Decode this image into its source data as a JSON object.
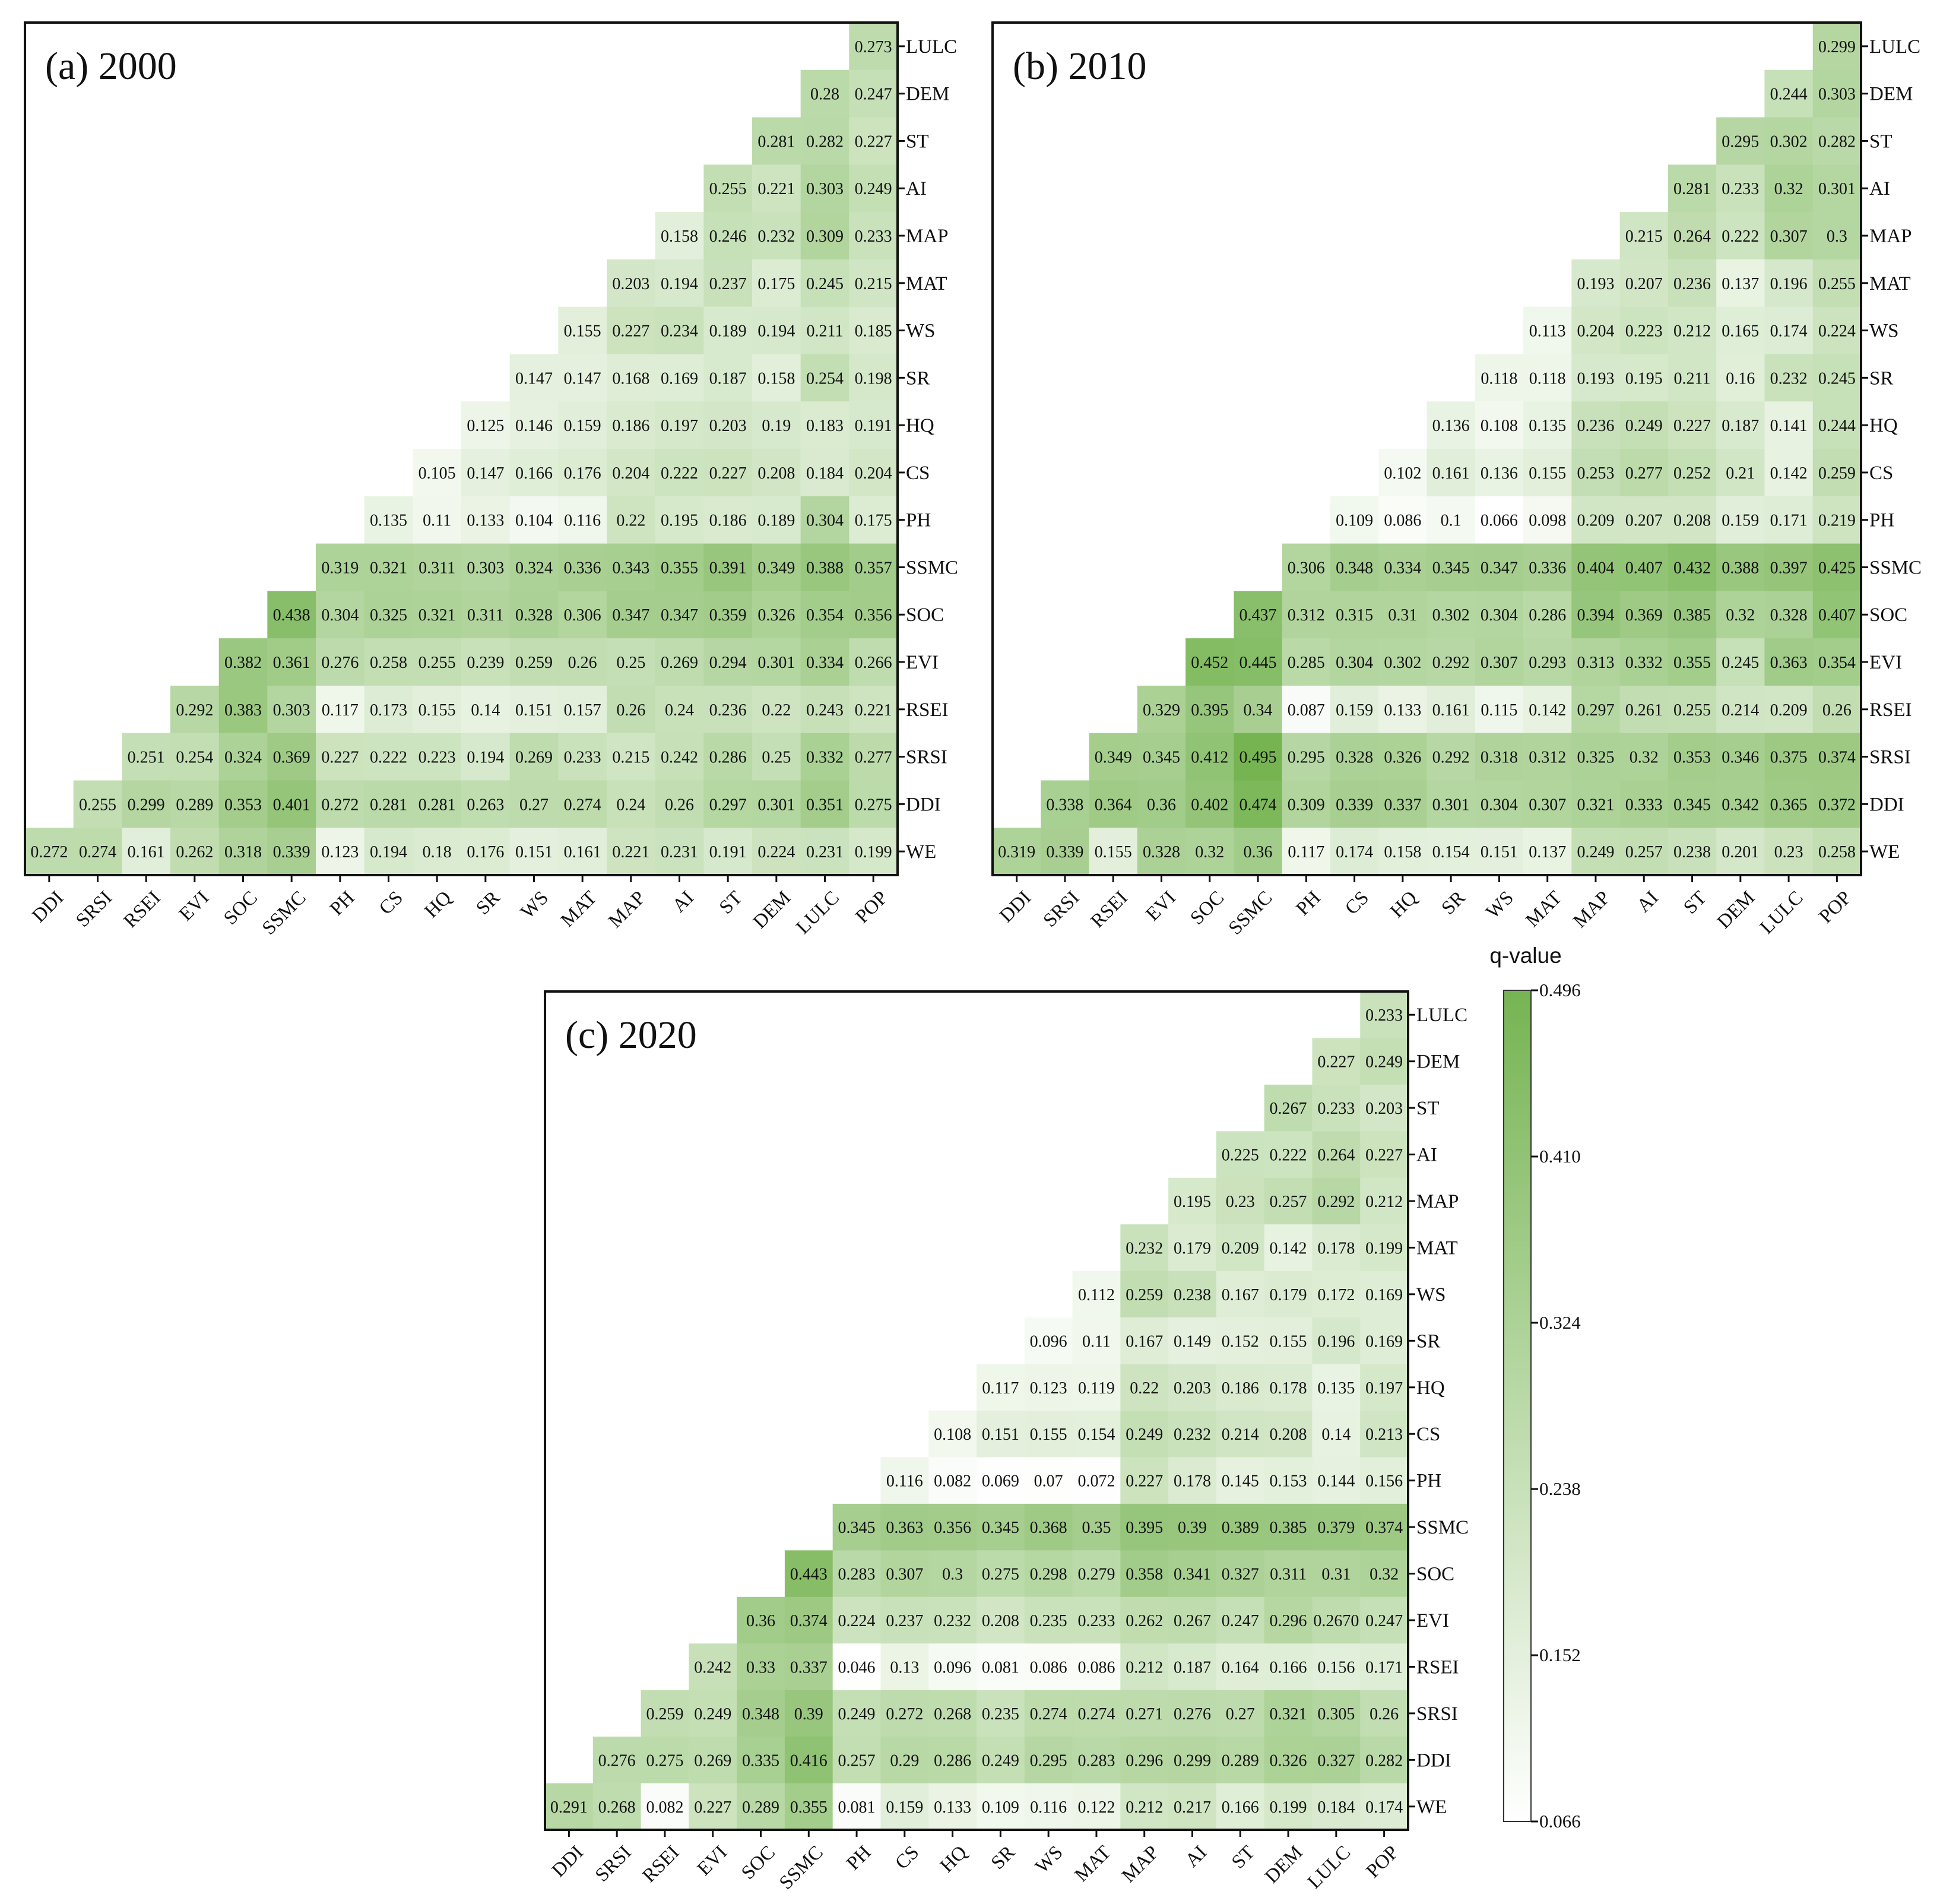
{
  "chart_data": {
    "type": "heatmap",
    "variables": [
      "DDI",
      "SRSI",
      "RSEI",
      "EVI",
      "SOC",
      "SSMC",
      "PH",
      "CS",
      "HQ",
      "SR",
      "WS",
      "MAT",
      "MAP",
      "AI",
      "ST",
      "DEM",
      "LULC",
      "POP"
    ],
    "row_order_top_to_bottom": [
      "LULC",
      "DEM",
      "ST",
      "AI",
      "MAP",
      "MAT",
      "WS",
      "SR",
      "HQ",
      "CS",
      "PH",
      "SSMC",
      "SOC",
      "EVI",
      "RSEI",
      "SRSI",
      "DDI",
      "WE"
    ],
    "color_scale": {
      "title": "q-value",
      "min": 0.066,
      "max": 0.496,
      "ticks": [
        "0.496",
        "0.410",
        "0.324",
        "0.238",
        "0.152",
        "0.066"
      ],
      "color_low": "#ffffff",
      "color_high": "#76b452"
    },
    "panels": [
      {
        "title": "(a) 2000",
        "rows": [
          {
            "label": "LULC",
            "values": [
              "0.273"
            ]
          },
          {
            "label": "DEM",
            "values": [
              "0.28",
              "0.247"
            ]
          },
          {
            "label": "ST",
            "values": [
              "0.281",
              "0.282",
              "0.227"
            ]
          },
          {
            "label": "AI",
            "values": [
              "0.255",
              "0.221",
              "0.303",
              "0.249"
            ]
          },
          {
            "label": "MAP",
            "values": [
              "0.158",
              "0.246",
              "0.232",
              "0.309",
              "0.233"
            ]
          },
          {
            "label": "MAT",
            "values": [
              "0.203",
              "0.194",
              "0.237",
              "0.175",
              "0.245",
              "0.215"
            ]
          },
          {
            "label": "WS",
            "values": [
              "0.155",
              "0.227",
              "0.234",
              "0.189",
              "0.194",
              "0.211",
              "0.185"
            ]
          },
          {
            "label": "SR",
            "values": [
              "0.147",
              "0.147",
              "0.168",
              "0.169",
              "0.187",
              "0.158",
              "0.254",
              "0.198"
            ]
          },
          {
            "label": "HQ",
            "values": [
              "0.125",
              "0.146",
              "0.159",
              "0.186",
              "0.197",
              "0.203",
              "0.19",
              "0.183",
              "0.191"
            ]
          },
          {
            "label": "CS",
            "values": [
              "0.105",
              "0.147",
              "0.166",
              "0.176",
              "0.204",
              "0.222",
              "0.227",
              "0.208",
              "0.184",
              "0.204"
            ]
          },
          {
            "label": "PH",
            "values": [
              "0.135",
              "0.11",
              "0.133",
              "0.104",
              "0.116",
              "0.22",
              "0.195",
              "0.186",
              "0.189",
              "0.304",
              "0.175"
            ]
          },
          {
            "label": "SSMC",
            "values": [
              "0.319",
              "0.321",
              "0.311",
              "0.303",
              "0.324",
              "0.336",
              "0.343",
              "0.355",
              "0.391",
              "0.349",
              "0.388",
              "0.357"
            ]
          },
          {
            "label": "SOC",
            "values": [
              "0.438",
              "0.304",
              "0.325",
              "0.321",
              "0.311",
              "0.328",
              "0.306",
              "0.347",
              "0.347",
              "0.359",
              "0.326",
              "0.354",
              "0.356"
            ]
          },
          {
            "label": "EVI",
            "values": [
              "0.382",
              "0.361",
              "0.276",
              "0.258",
              "0.255",
              "0.239",
              "0.259",
              "0.26",
              "0.25",
              "0.269",
              "0.294",
              "0.301",
              "0.334",
              "0.266"
            ]
          },
          {
            "label": "RSEI",
            "values": [
              "0.292",
              "0.383",
              "0.303",
              "0.117",
              "0.173",
              "0.155",
              "0.14",
              "0.151",
              "0.157",
              "0.26",
              "0.24",
              "0.236",
              "0.22",
              "0.243",
              "0.221"
            ]
          },
          {
            "label": "SRSI",
            "values": [
              "0.251",
              "0.254",
              "0.324",
              "0.369",
              "0.227",
              "0.222",
              "0.223",
              "0.194",
              "0.269",
              "0.233",
              "0.215",
              "0.242",
              "0.286",
              "0.25",
              "0.332",
              "0.277"
            ]
          },
          {
            "label": "DDI",
            "values": [
              "0.255",
              "0.299",
              "0.289",
              "0.353",
              "0.401",
              "0.272",
              "0.281",
              "0.281",
              "0.263",
              "0.27",
              "0.274",
              "0.24",
              "0.26",
              "0.297",
              "0.301",
              "0.351",
              "0.275"
            ]
          },
          {
            "label": "WE",
            "values": [
              "0.272",
              "0.274",
              "0.161",
              "0.262",
              "0.318",
              "0.339",
              "0.123",
              "0.194",
              "0.18",
              "0.176",
              "0.151",
              "0.161",
              "0.221",
              "0.231",
              "0.191",
              "0.224",
              "0.231",
              "0.199"
            ]
          }
        ]
      },
      {
        "title": "(b) 2010",
        "rows": [
          {
            "label": "LULC",
            "values": [
              "0.299"
            ]
          },
          {
            "label": "DEM",
            "values": [
              "0.244",
              "0.303"
            ]
          },
          {
            "label": "ST",
            "values": [
              "0.295",
              "0.302",
              "0.282"
            ]
          },
          {
            "label": "AI",
            "values": [
              "0.281",
              "0.233",
              "0.32",
              "0.301"
            ]
          },
          {
            "label": "MAP",
            "values": [
              "0.215",
              "0.264",
              "0.222",
              "0.307",
              "0.3"
            ]
          },
          {
            "label": "MAT",
            "values": [
              "0.193",
              "0.207",
              "0.236",
              "0.137",
              "0.196",
              "0.255"
            ]
          },
          {
            "label": "WS",
            "values": [
              "0.113",
              "0.204",
              "0.223",
              "0.212",
              "0.165",
              "0.174",
              "0.224"
            ]
          },
          {
            "label": "SR",
            "values": [
              "0.118",
              "0.118",
              "0.193",
              "0.195",
              "0.211",
              "0.16",
              "0.232",
              "0.245"
            ]
          },
          {
            "label": "HQ",
            "values": [
              "0.136",
              "0.108",
              "0.135",
              "0.236",
              "0.249",
              "0.227",
              "0.187",
              "0.141",
              "0.244"
            ]
          },
          {
            "label": "CS",
            "values": [
              "0.102",
              "0.161",
              "0.136",
              "0.155",
              "0.253",
              "0.277",
              "0.252",
              "0.21",
              "0.142",
              "0.259"
            ]
          },
          {
            "label": "PH",
            "values": [
              "0.109",
              "0.086",
              "0.1",
              "0.066",
              "0.098",
              "0.209",
              "0.207",
              "0.208",
              "0.159",
              "0.171",
              "0.219"
            ]
          },
          {
            "label": "SSMC",
            "values": [
              "0.306",
              "0.348",
              "0.334",
              "0.345",
              "0.347",
              "0.336",
              "0.404",
              "0.407",
              "0.432",
              "0.388",
              "0.397",
              "0.425"
            ]
          },
          {
            "label": "SOC",
            "values": [
              "0.437",
              "0.312",
              "0.315",
              "0.31",
              "0.302",
              "0.304",
              "0.286",
              "0.394",
              "0.369",
              "0.385",
              "0.32",
              "0.328",
              "0.407"
            ]
          },
          {
            "label": "EVI",
            "values": [
              "0.452",
              "0.445",
              "0.285",
              "0.304",
              "0.302",
              "0.292",
              "0.307",
              "0.293",
              "0.313",
              "0.332",
              "0.355",
              "0.245",
              "0.363",
              "0.354"
            ]
          },
          {
            "label": "RSEI",
            "values": [
              "0.329",
              "0.395",
              "0.34",
              "0.087",
              "0.159",
              "0.133",
              "0.161",
              "0.115",
              "0.142",
              "0.297",
              "0.261",
              "0.255",
              "0.214",
              "0.209",
              "0.26"
            ]
          },
          {
            "label": "SRSI",
            "values": [
              "0.349",
              "0.345",
              "0.412",
              "0.495",
              "0.295",
              "0.328",
              "0.326",
              "0.292",
              "0.318",
              "0.312",
              "0.325",
              "0.32",
              "0.353",
              "0.346",
              "0.375",
              "0.374"
            ]
          },
          {
            "label": "DDI",
            "values": [
              "0.338",
              "0.364",
              "0.36",
              "0.402",
              "0.474",
              "0.309",
              "0.339",
              "0.337",
              "0.301",
              "0.304",
              "0.307",
              "0.321",
              "0.333",
              "0.345",
              "0.342",
              "0.365",
              "0.372"
            ]
          },
          {
            "label": "WE",
            "values": [
              "0.319",
              "0.339",
              "0.155",
              "0.328",
              "0.32",
              "0.36",
              "0.117",
              "0.174",
              "0.158",
              "0.154",
              "0.151",
              "0.137",
              "0.249",
              "0.257",
              "0.238",
              "0.201",
              "0.23",
              "0.258"
            ]
          }
        ]
      },
      {
        "title": "(c) 2020",
        "rows": [
          {
            "label": "LULC",
            "values": [
              "0.233"
            ]
          },
          {
            "label": "DEM",
            "values": [
              "0.227",
              "0.249"
            ]
          },
          {
            "label": "ST",
            "values": [
              "0.267",
              "0.233",
              "0.203"
            ]
          },
          {
            "label": "AI",
            "values": [
              "0.225",
              "0.222",
              "0.264",
              "0.227"
            ]
          },
          {
            "label": "MAP",
            "values": [
              "0.195",
              "0.23",
              "0.257",
              "0.292",
              "0.212"
            ]
          },
          {
            "label": "MAT",
            "values": [
              "0.232",
              "0.179",
              "0.209",
              "0.142",
              "0.178",
              "0.199"
            ]
          },
          {
            "label": "WS",
            "values": [
              "0.112",
              "0.259",
              "0.238",
              "0.167",
              "0.179",
              "0.172",
              "0.169"
            ]
          },
          {
            "label": "SR",
            "values": [
              "0.096",
              "0.11",
              "0.167",
              "0.149",
              "0.152",
              "0.155",
              "0.196",
              "0.169"
            ]
          },
          {
            "label": "HQ",
            "values": [
              "0.117",
              "0.123",
              "0.119",
              "0.22",
              "0.203",
              "0.186",
              "0.178",
              "0.135",
              "0.197"
            ]
          },
          {
            "label": "CS",
            "values": [
              "0.108",
              "0.151",
              "0.155",
              "0.154",
              "0.249",
              "0.232",
              "0.214",
              "0.208",
              "0.14",
              "0.213"
            ]
          },
          {
            "label": "PH",
            "values": [
              "0.116",
              "0.082",
              "0.069",
              "0.07",
              "0.072",
              "0.227",
              "0.178",
              "0.145",
              "0.153",
              "0.144",
              "0.156"
            ]
          },
          {
            "label": "SSMC",
            "values": [
              "0.345",
              "0.363",
              "0.356",
              "0.345",
              "0.368",
              "0.35",
              "0.395",
              "0.39",
              "0.389",
              "0.385",
              "0.379",
              "0.374"
            ]
          },
          {
            "label": "SOC",
            "values": [
              "0.443",
              "0.283",
              "0.307",
              "0.3",
              "0.275",
              "0.298",
              "0.279",
              "0.358",
              "0.341",
              "0.327",
              "0.311",
              "0.31",
              "0.32"
            ]
          },
          {
            "label": "EVI",
            "values": [
              "0.36",
              "0.374",
              "0.224",
              "0.237",
              "0.232",
              "0.208",
              "0.235",
              "0.233",
              "0.262",
              "0.267",
              "0.247",
              "0.296",
              "0.2670",
              "0.247"
            ]
          },
          {
            "label": "RSEI",
            "values": [
              "0.242",
              "0.33",
              "0.337",
              "0.046",
              "0.13",
              "0.096",
              "0.081",
              "0.086",
              "0.086",
              "0.212",
              "0.187",
              "0.164",
              "0.166",
              "0.156",
              "0.171"
            ]
          },
          {
            "label": "SRSI",
            "values": [
              "0.259",
              "0.249",
              "0.348",
              "0.39",
              "0.249",
              "0.272",
              "0.268",
              "0.235",
              "0.274",
              "0.274",
              "0.271",
              "0.276",
              "0.27",
              "0.321",
              "0.305",
              "0.26"
            ]
          },
          {
            "label": "DDI",
            "values": [
              "0.276",
              "0.275",
              "0.269",
              "0.335",
              "0.416",
              "0.257",
              "0.29",
              "0.286",
              "0.249",
              "0.295",
              "0.283",
              "0.296",
              "0.299",
              "0.289",
              "0.326",
              "0.327",
              "0.282"
            ]
          },
          {
            "label": "WE",
            "values": [
              "0.291",
              "0.268",
              "0.082",
              "0.227",
              "0.289",
              "0.355",
              "0.081",
              "0.159",
              "0.133",
              "0.109",
              "0.116",
              "0.122",
              "0.212",
              "0.217",
              "0.166",
              "0.199",
              "0.184",
              "0.174"
            ]
          }
        ]
      }
    ]
  }
}
